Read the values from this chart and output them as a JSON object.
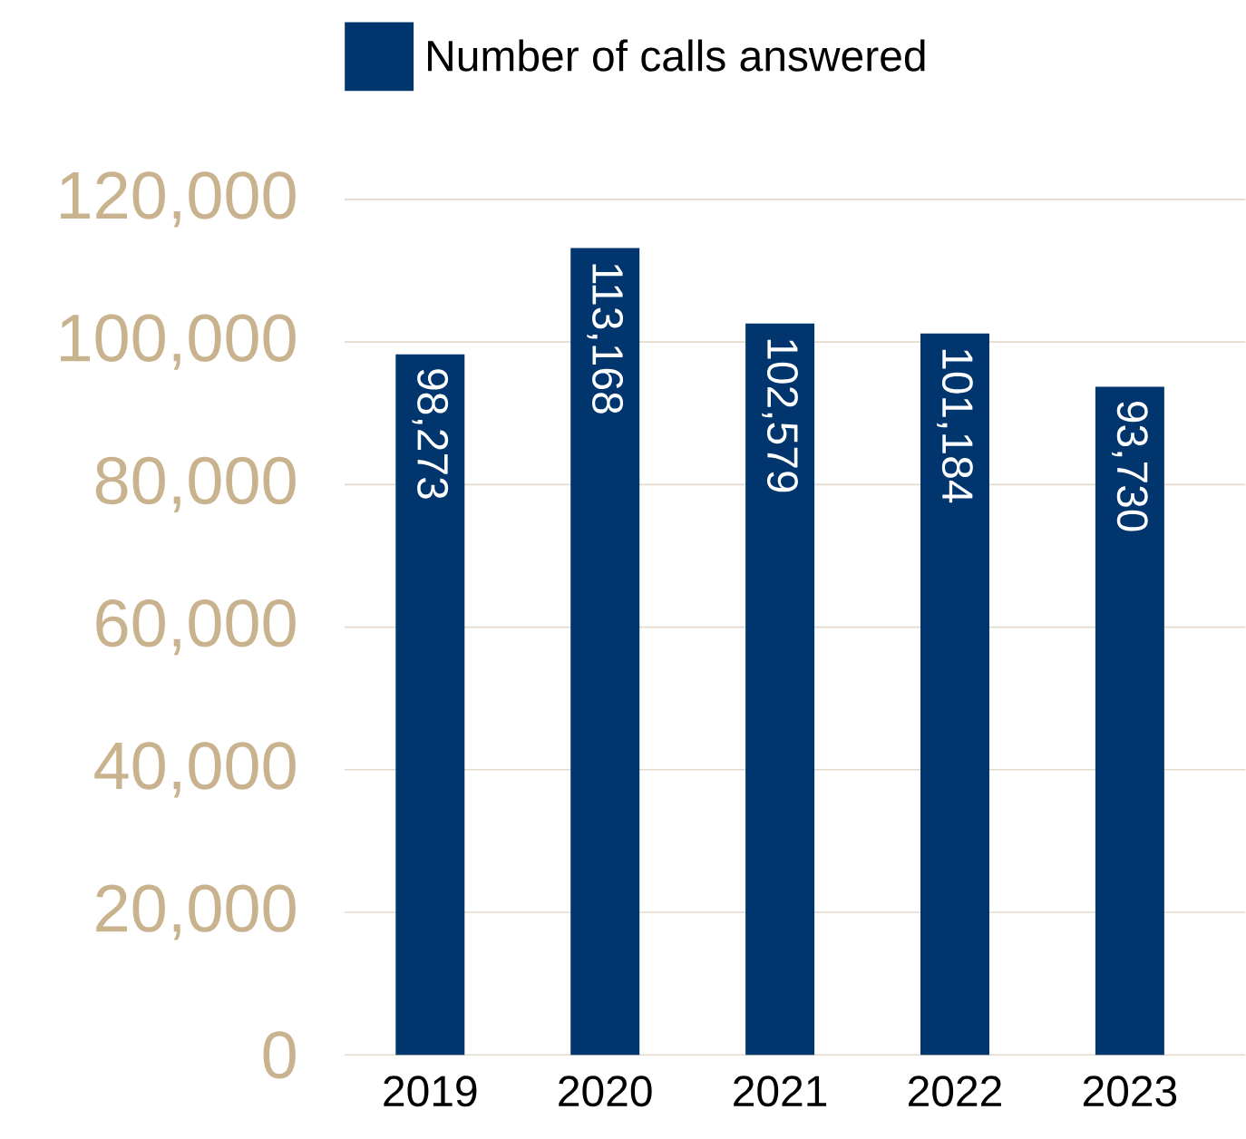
{
  "chart_data": {
    "type": "bar",
    "categories": [
      "2019",
      "2020",
      "2021",
      "2022",
      "2023"
    ],
    "series": [
      {
        "name": "Number of calls answered",
        "color": "#00356e",
        "values": [
          98273,
          113168,
          102579,
          101184,
          93730
        ],
        "value_labels": [
          "98,273",
          "113,168",
          "102,579",
          "101,184",
          "93,730"
        ]
      }
    ],
    "ylim": [
      0,
      120000
    ],
    "yticks": [
      {
        "value": 0,
        "label": "0"
      },
      {
        "value": 20000,
        "label": "20,000"
      },
      {
        "value": 40000,
        "label": "40,000"
      },
      {
        "value": 60000,
        "label": "60,000"
      },
      {
        "value": 80000,
        "label": "80,000"
      },
      {
        "value": 100000,
        "label": "100,000"
      },
      {
        "value": 120000,
        "label": "120,000"
      }
    ],
    "grid": "y",
    "legend": "top left"
  }
}
